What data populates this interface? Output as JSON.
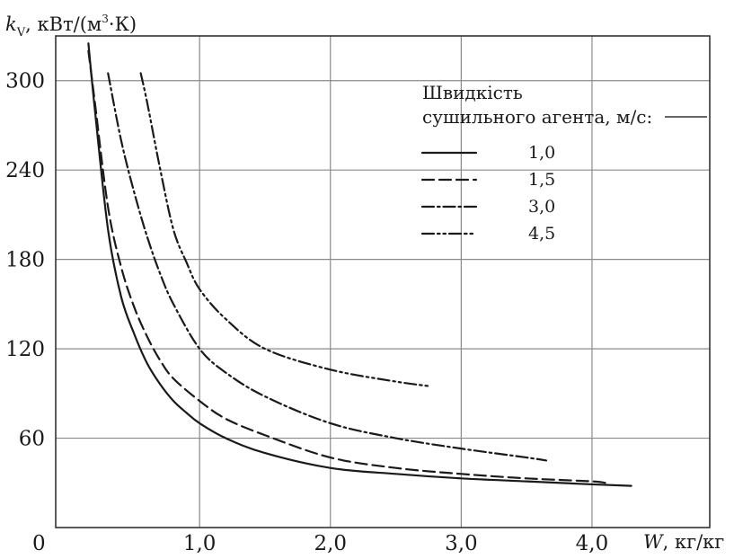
{
  "chart_data": {
    "type": "line",
    "title": "",
    "ylabel_var": "k",
    "ylabel_sub": "V",
    "ylabel_unit": ", кВт/(м",
    "ylabel_sup": "3",
    "ylabel_tail": "·К)",
    "xlabel_var": "W",
    "xlabel_unit": ", кг/кг",
    "xlim": [
      -0.1,
      4.9
    ],
    "ylim": [
      0,
      330
    ],
    "grid": true,
    "x_ticks": [
      {
        "value": 1.0,
        "label": "1,0"
      },
      {
        "value": 2.0,
        "label": "2,0"
      },
      {
        "value": 3.0,
        "label": "3,0"
      },
      {
        "value": 4.0,
        "label": "4,0"
      }
    ],
    "y_ticks": [
      {
        "value": 60,
        "label": "60"
      },
      {
        "value": 120,
        "label": "120"
      },
      {
        "value": 180,
        "label": "180"
      },
      {
        "value": 240,
        "label": "240"
      },
      {
        "value": 300,
        "label": "300"
      }
    ],
    "origin_label": "0",
    "legend": {
      "title_line1": "Швидкість",
      "title_line2": "сушильного агента, м/с:",
      "placement": "top-right"
    },
    "series": [
      {
        "name": "1,0",
        "dash": "solid",
        "points": [
          [
            0.15,
            325
          ],
          [
            0.2,
            280
          ],
          [
            0.3,
            200
          ],
          [
            0.4,
            155
          ],
          [
            0.5,
            130
          ],
          [
            0.6,
            110
          ],
          [
            0.7,
            96
          ],
          [
            0.8,
            85
          ],
          [
            0.9,
            77
          ],
          [
            1.0,
            70
          ],
          [
            1.2,
            60
          ],
          [
            1.5,
            50
          ],
          [
            2.0,
            40
          ],
          [
            2.5,
            36
          ],
          [
            3.0,
            33
          ],
          [
            3.5,
            31
          ],
          [
            4.0,
            29
          ],
          [
            4.3,
            28
          ]
        ]
      },
      {
        "name": "1,5",
        "dash": "dashed",
        "points": [
          [
            0.15,
            320
          ],
          [
            0.2,
            285
          ],
          [
            0.3,
            215
          ],
          [
            0.4,
            175
          ],
          [
            0.5,
            148
          ],
          [
            0.6,
            128
          ],
          [
            0.7,
            112
          ],
          [
            0.8,
            100
          ],
          [
            1.0,
            85
          ],
          [
            1.2,
            73
          ],
          [
            1.5,
            62
          ],
          [
            2.0,
            47
          ],
          [
            2.5,
            40
          ],
          [
            3.0,
            36
          ],
          [
            3.5,
            33
          ],
          [
            4.0,
            31
          ],
          [
            4.1,
            30
          ]
        ]
      },
      {
        "name": "3,0",
        "dash": "dash-dot",
        "points": [
          [
            0.3,
            305
          ],
          [
            0.4,
            260
          ],
          [
            0.5,
            225
          ],
          [
            0.6,
            195
          ],
          [
            0.7,
            170
          ],
          [
            0.8,
            150
          ],
          [
            1.0,
            120
          ],
          [
            1.2,
            104
          ],
          [
            1.5,
            88
          ],
          [
            2.0,
            70
          ],
          [
            2.5,
            60
          ],
          [
            3.0,
            53
          ],
          [
            3.5,
            47
          ],
          [
            3.65,
            45
          ]
        ]
      },
      {
        "name": "4,5",
        "dash": "dash-dot-dot",
        "points": [
          [
            0.55,
            305
          ],
          [
            0.6,
            285
          ],
          [
            0.7,
            240
          ],
          [
            0.8,
            200
          ],
          [
            0.9,
            178
          ],
          [
            1.0,
            160
          ],
          [
            1.2,
            140
          ],
          [
            1.5,
            120
          ],
          [
            2.0,
            106
          ],
          [
            2.5,
            98
          ],
          [
            2.75,
            95
          ]
        ]
      }
    ]
  }
}
